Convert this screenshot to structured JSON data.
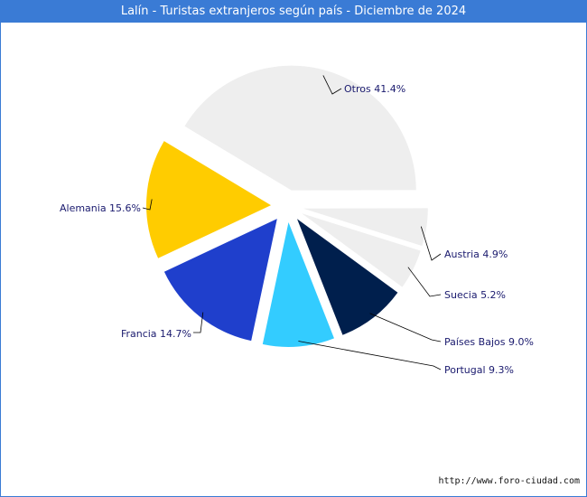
{
  "chart_data": {
    "type": "pie",
    "title": "Lalín - Turistas extranjeros según país - Diciembre de 2024",
    "slices": [
      {
        "name": "Otros",
        "value": 41.4,
        "label": "Otros 41.4%",
        "color": "#eeeeee"
      },
      {
        "name": "Austria",
        "value": 4.9,
        "label": "Austria 4.9%",
        "color": "#eeeeee"
      },
      {
        "name": "Suecia",
        "value": 5.2,
        "label": "Suecia 5.2%",
        "color": "#eeeeee"
      },
      {
        "name": "Países Bajos",
        "value": 9.0,
        "label": "Países Bajos 9.0%",
        "color": "#001f4d"
      },
      {
        "name": "Portugal",
        "value": 9.3,
        "label": "Portugal 9.3%",
        "color": "#33ccff"
      },
      {
        "name": "Francia",
        "value": 14.7,
        "label": "Francia 14.7%",
        "color": "#1f3fcc"
      },
      {
        "name": "Alemania",
        "value": 15.6,
        "label": "Alemania 15.6%",
        "color": "#ffcc00"
      }
    ]
  },
  "footer": {
    "url": "http://www.foro-ciudad.com"
  }
}
